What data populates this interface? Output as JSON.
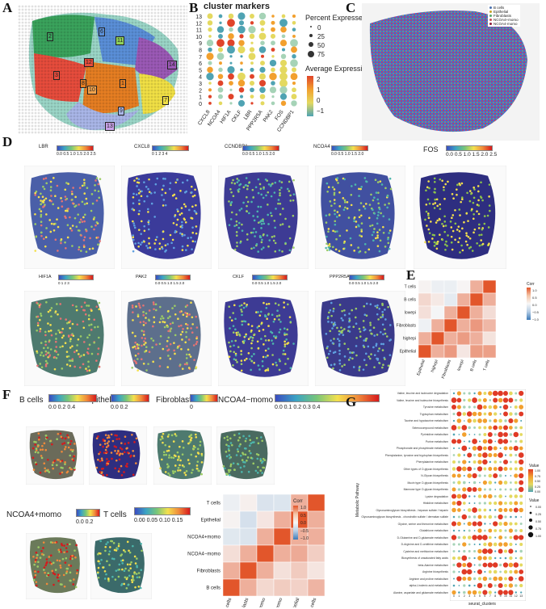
{
  "panels": {
    "A": "A",
    "B": "B",
    "C": "C",
    "D": "D",
    "E": "E",
    "F": "F",
    "G": "G"
  },
  "panel_a": {
    "cluster_labels": [
      "2",
      "6",
      "11",
      "12",
      "3",
      "8",
      "10",
      "1",
      "14",
      "9",
      "13",
      "7"
    ]
  },
  "panel_b": {
    "title": "cluster markers",
    "legend_percent_title": "Percent Expressed",
    "legend_percent_values": [
      "0",
      "25",
      "50",
      "75"
    ],
    "legend_avg_title": "Average Expression",
    "legend_avg_ticks": [
      "2",
      "1",
      "0",
      "−1"
    ]
  },
  "panel_c": {
    "legend": [
      {
        "label": "B cells",
        "color": "#4c72b0"
      },
      {
        "label": "Epithelial",
        "color": "#c9a227"
      },
      {
        "label": "Fibroblasts",
        "color": "#55a868"
      },
      {
        "label": "NCOA4+momo",
        "color": "#c44e52"
      },
      {
        "label": "NCOA4-momo",
        "color": "#8b1a3b"
      }
    ]
  },
  "panel_d": {
    "row1": [
      {
        "gene": "LBR",
        "ticks": "0.0 0.5 1.0 1.5 2.0 2.5"
      },
      {
        "gene": "CXCL8",
        "ticks": "0  1  2  3  4"
      },
      {
        "gene": "CCNDBP1",
        "ticks": "0.0 0.5 1.0 1.5 2.0"
      },
      {
        "gene": "NCOA4",
        "ticks": "0.0 0.5 1.0 1.5 2.0"
      },
      {
        "gene": "FOS",
        "ticks": "0.0 0.5 1.0 1.5 2.0 2.5"
      }
    ],
    "row2": [
      {
        "gene": "HIF1A",
        "ticks": "0   1   2   3"
      },
      {
        "gene": "PAK2",
        "ticks": "0.0 0.5 1.0 1.5 2.0"
      },
      {
        "gene": "CKLF",
        "ticks": "0.0 0.5 1.0 1.5 2.0"
      },
      {
        "gene": "PPP2R5A",
        "ticks": "0.0 0.5 1.0 1.5 2.0"
      }
    ]
  },
  "panel_e": {
    "legend_title": "Corr",
    "legend_ticks": [
      "1.0",
      "0.5",
      "0.0",
      "−0.5",
      "−1.0"
    ]
  },
  "panel_f": {
    "top_legends": [
      {
        "title": "B cells",
        "ticks": "0.0  0.2  0.4"
      },
      {
        "title": "Epithelial",
        "ticks": "0.0  0.2"
      },
      {
        "title": "Fibroblasts",
        "ticks": "0"
      },
      {
        "title": "NCOA4−momo",
        "ticks": "0.0  0.1  0.2  0.3  0.4"
      }
    ],
    "bottom_legends": [
      {
        "title": "NCOA4+momo",
        "ticks": "0.0  0.2"
      },
      {
        "title": "T cells",
        "ticks": "0.00  0.05  0.10  0.15"
      }
    ],
    "heat_legend_title": "Corr",
    "heat_legend_ticks": [
      "1.0",
      "0.5",
      "0.0",
      "−0.5",
      "−1.0"
    ]
  },
  "panel_g": {
    "y_axis_title": "Metabolic Pathway",
    "x_axis_title": "seurat_clusters",
    "value_title": "Value",
    "value_ticks": [
      "1.00",
      "0.75",
      "0.50",
      "0.25",
      "0.00"
    ],
    "size_title": "Value",
    "size_ticks": [
      "0.00",
      "0.25",
      "0.50",
      "0.75",
      "1.00"
    ],
    "pathways": [
      "Valine, leucine and isoleucine degradation",
      "Valine, leucine and isoleucine biosynthesis",
      "Tyrosine metabolism",
      "Tryptophan metabolism",
      "Taurine and hypotaurine metabolism",
      "Selenocompound metabolism",
      "Pyrimidine metabolism",
      "Purine metabolism",
      "Phosphonate and phosphinate metabolism",
      "Phenylalanine, tyrosine and tryptophan biosynthesis",
      "Phenylalanine metabolism",
      "Other types of O-glycan biosynthesis",
      "N-Glycan biosynthesis",
      "Mucin type O-glycan biosynthesis",
      "Mannose type O-glycan biosynthesis",
      "Lysine degradation",
      "Histidine metabolism",
      "Glycosaminoglycan biosynthesis - heparan sulfate / heparin",
      "Glycosaminoglycan biosynthesis - chondroitin sulfate / dermatan sulfate",
      "Glycine, serine and threonine metabolism",
      "Glutathione metabolism",
      "D-Glutamine and D-glutamate metabolism",
      "D-Arginine and D-ornithine metabolism",
      "Cysteine and methionine metabolism",
      "Biosynthesis of unsaturated fatty acids",
      "beta-Alanine metabolism",
      "Arginine biosynthesis",
      "Arginine and proline metabolism",
      "alpha-Linolenic acid metabolism",
      "Alanine, aspartate and glutamate metabolism"
    ],
    "clusters": [
      "0",
      "1",
      "2",
      "3",
      "4",
      "5",
      "6",
      "7",
      "8",
      "9",
      "10",
      "11",
      "12",
      "13"
    ]
  },
  "chart_data": [
    {
      "type": "scatter",
      "title": "cluster markers",
      "xlabel": "",
      "ylabel": "",
      "categories_x": [
        "CXCL8",
        "NCOA4",
        "HIF1A",
        "CKLF",
        "LBR",
        "PPP2R5A",
        "PAK2",
        "FOS",
        "CCNDBP1"
      ],
      "categories_y": [
        "0",
        "1",
        "2",
        "3",
        "4",
        "5",
        "6",
        "7",
        "8",
        "9",
        "10",
        "11",
        "12",
        "13"
      ],
      "size_legend": [
        0,
        25,
        50,
        75
      ],
      "color_range": [
        -1,
        2
      ]
    },
    {
      "type": "heatmap",
      "title": "",
      "x": [
        "Epithelial",
        "highepi",
        "Fibroblasts",
        "lowepi",
        "B cells",
        "T cells"
      ],
      "y": [
        "T cells",
        "B cells",
        "lowepi",
        "Fibroblasts",
        "highepi",
        "Epithelial"
      ],
      "zlim": [
        -1,
        1
      ]
    },
    {
      "type": "heatmap",
      "title": "",
      "x": [
        "B cells",
        "Fibroblasts",
        "NCOA4−momo",
        "NCOA4+momo",
        "Epithelial",
        "T cells"
      ],
      "y": [
        "T cells",
        "Epithelial",
        "NCOA4+momo",
        "NCOA4−momo",
        "Fibroblasts",
        "B cells"
      ],
      "zlim": [
        -1,
        1
      ]
    }
  ]
}
